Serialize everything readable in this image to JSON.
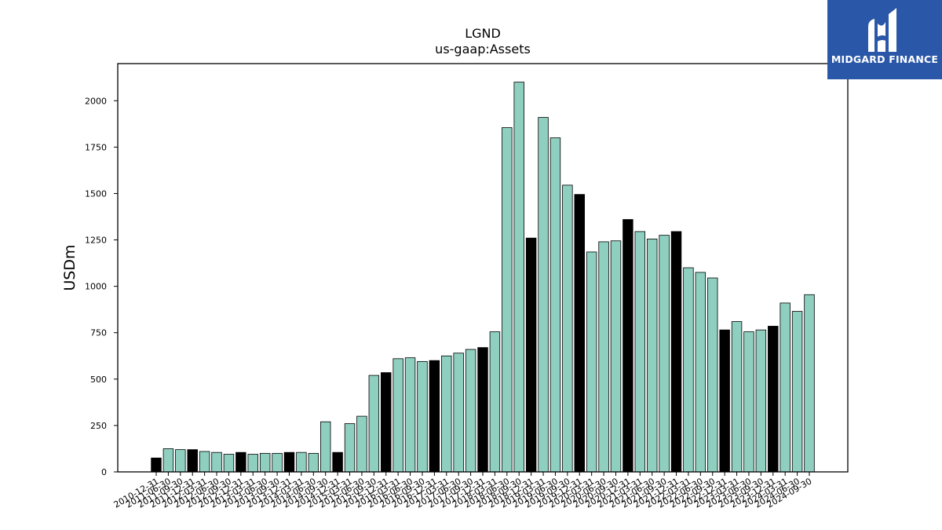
{
  "chart_data": {
    "type": "bar",
    "title": "LGND",
    "subtitle": "us-gaap:Assets",
    "xlabel": "",
    "ylabel": "USDm",
    "ylim": [
      0,
      2200
    ],
    "yticks": [
      0,
      250,
      500,
      750,
      1000,
      1250,
      1500,
      1750,
      2000
    ],
    "grid": false,
    "categories": [
      "2010-12-31",
      "2011-06-30",
      "2011-09-30",
      "2011-12-31",
      "2012-03-31",
      "2012-06-30",
      "2012-09-30",
      "2012-12-31",
      "2013-03-31",
      "2013-06-30",
      "2013-09-30",
      "2013-12-31",
      "2014-03-31",
      "2014-06-30",
      "2014-09-30",
      "2014-12-31",
      "2015-03-31",
      "2015-06-30",
      "2015-09-30",
      "2015-12-31",
      "2016-03-31",
      "2016-06-30",
      "2016-09-30",
      "2016-12-31",
      "2017-03-31",
      "2017-06-30",
      "2017-09-30",
      "2017-12-31",
      "2018-03-31",
      "2018-06-30",
      "2018-09-30",
      "2018-12-31",
      "2019-03-31",
      "2019-06-30",
      "2019-09-30",
      "2019-12-31",
      "2020-03-31",
      "2020-06-30",
      "2020-09-30",
      "2020-12-31",
      "2021-03-31",
      "2021-06-30",
      "2021-09-30",
      "2021-12-31",
      "2022-03-31",
      "2022-06-30",
      "2022-09-30",
      "2022-12-31",
      "2023-03-31",
      "2023-06-30",
      "2023-09-30",
      "2023-12-31",
      "2024-03-31",
      "2024-06-30",
      "2024-09-30"
    ],
    "values": [
      75,
      125,
      120,
      120,
      110,
      105,
      95,
      105,
      95,
      100,
      100,
      105,
      105,
      100,
      270,
      105,
      260,
      300,
      520,
      535,
      610,
      615,
      595,
      600,
      625,
      640,
      660,
      670,
      755,
      1855,
      2100,
      1260,
      1910,
      1800,
      1545,
      1495,
      1185,
      1240,
      1245,
      1360,
      1295,
      1255,
      1275,
      1295,
      1100,
      1075,
      1045,
      765,
      810,
      755,
      765,
      785,
      910,
      865,
      955
    ],
    "colors": {
      "bar_fill": "#8ecfc0",
      "year_end_fill": "#000000",
      "bar_edge": "#000000"
    }
  },
  "logo": {
    "text": "MIDGARD FINANCE",
    "background": "#2b57a8"
  }
}
